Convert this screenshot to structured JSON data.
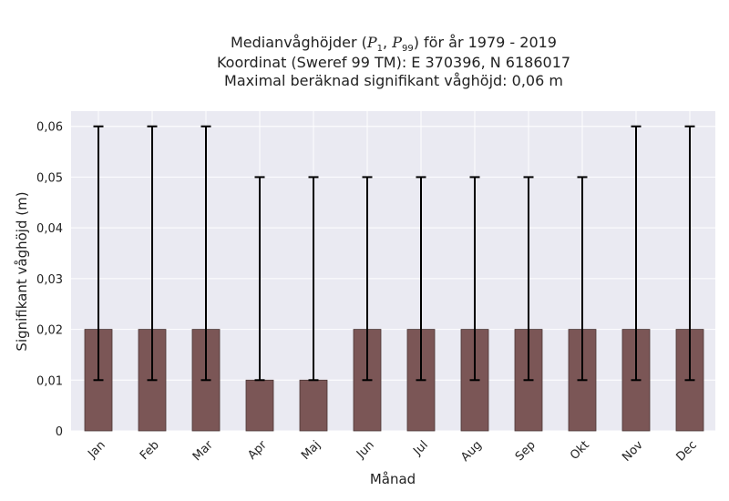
{
  "chart_data": {
    "type": "bar",
    "title_lines": [
      "Medianvåghöjder (P1, P99) för år 1979 - 2019",
      "Koordinat (Sweref 99 TM): E 370396, N 6186017",
      "Maximal beräknad signifikant våghöjd: 0,06 m"
    ],
    "xlabel": "Månad",
    "ylabel": "Signifikant våghöjd (m)",
    "categories": [
      "Jan",
      "Feb",
      "Mar",
      "Apr",
      "Maj",
      "Jun",
      "Jul",
      "Aug",
      "Sep",
      "Okt",
      "Nov",
      "Dec"
    ],
    "values": [
      0.02,
      0.02,
      0.02,
      0.01,
      0.01,
      0.02,
      0.02,
      0.02,
      0.02,
      0.02,
      0.02,
      0.02
    ],
    "error_low": [
      0.01,
      0.01,
      0.01,
      0.01,
      0.01,
      0.01,
      0.01,
      0.01,
      0.01,
      0.01,
      0.01,
      0.01
    ],
    "error_high": [
      0.06,
      0.06,
      0.06,
      0.05,
      0.05,
      0.05,
      0.05,
      0.05,
      0.05,
      0.05,
      0.06,
      0.06
    ],
    "ylim": [
      0,
      0.063
    ],
    "yticks": [
      0,
      0.01,
      0.02,
      0.03,
      0.04,
      0.05,
      0.06
    ],
    "ytick_labels": [
      "0",
      "0,01",
      "0,02",
      "0,03",
      "0,04",
      "0,05",
      "0,06"
    ],
    "bar_color": "#7b5656",
    "grid": true,
    "plot_background": "#eaeaf2"
  }
}
